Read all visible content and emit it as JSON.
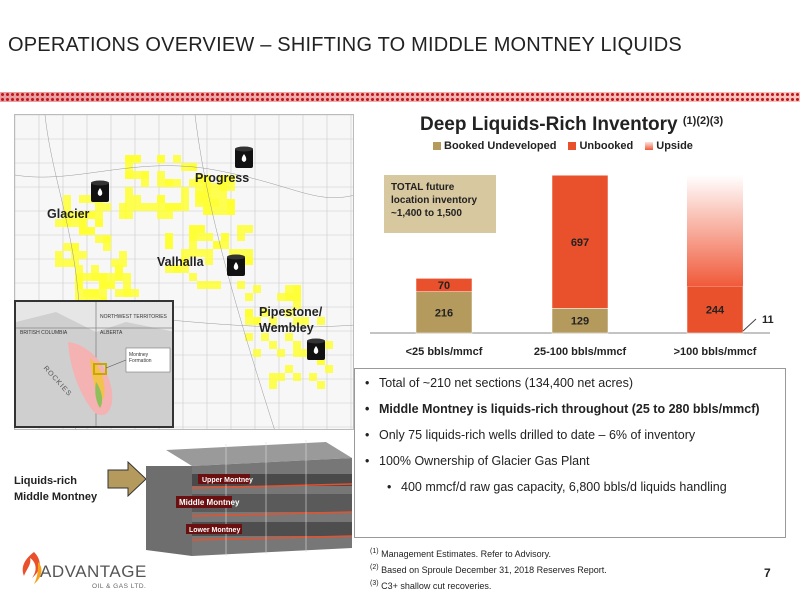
{
  "slide": {
    "title": "OPERATIONS OVERVIEW – SHIFTING TO MIDDLE MONTNEY LIQUIDS",
    "page_number": "7"
  },
  "map": {
    "labels": {
      "glacier": "Glacier",
      "progress": "Progress",
      "valhalla": "Valhalla",
      "pipestone": "Pipestone/",
      "wembley": "Wembley"
    },
    "inset_labels": {
      "nwt": "NORTHWEST TERRITORIES",
      "bc": "BRITISH COLUMBIA",
      "alberta": "ALBERTA",
      "rockies": "ROCKIES",
      "montney": "Montney Formation"
    },
    "brand_colors": {
      "field": "#ffff33",
      "drum": "#111111"
    }
  },
  "chart_data": {
    "type": "bar",
    "title": "Deep Liquids-Rich Inventory",
    "title_footnotes": "(1)(2)(3)",
    "categories": [
      "<25 bbls/mmcf",
      "25-100 bbls/mmcf",
      ">100 bbls/mmcf"
    ],
    "series": [
      {
        "name": "Booked Undeveloped",
        "color": "#b59a5e",
        "values": [
          216,
          129,
          0
        ]
      },
      {
        "name": "Unbooked",
        "color": "#e8512c",
        "values": [
          70,
          697,
          244
        ]
      },
      {
        "name": "Upside",
        "color": "#f05a3a",
        "values": [
          0,
          0,
          0
        ]
      }
    ],
    "data_labels": {
      "booked": [
        "216",
        "129",
        ""
      ],
      "unbooked": [
        "70",
        "697",
        "244"
      ],
      "extra": "11"
    },
    "upside_gradient": true,
    "stacked": true
  },
  "callout": {
    "line1": "TOTAL future",
    "line2": "location inventory",
    "line3": "~1,400 to 1,500"
  },
  "bullets": [
    {
      "text": "Total of ~210 net sections (134,400 net acres)",
      "bold": false
    },
    {
      "text": "Middle Montney is liquids-rich throughout (25 to 280 bbls/mmcf)",
      "bold": true
    },
    {
      "text": "Only 75 liquids-rich wells drilled to date – 6% of inventory",
      "bold": false
    },
    {
      "text": "100% Ownership of Glacier Gas Plant",
      "bold": false
    },
    {
      "text": "400 mmcf/d raw gas capacity, 6,800 bbls/d liquids handling",
      "bold": false
    }
  ],
  "footnotes": [
    {
      "num": "(1)",
      "text": "Management Estimates. Refer to Advisory."
    },
    {
      "num": "(2)",
      "text": "Based on Sproule December 31, 2018 Reserves Report."
    },
    {
      "num": "(3)",
      "text": "C3+ shallow cut recoveries."
    }
  ],
  "cross_section": {
    "label_line1": "Liquids-rich",
    "label_line2": "Middle Montney",
    "upper": "Upper Montney",
    "middle": "Middle Montney",
    "lower": "Lower Montney"
  },
  "logo": {
    "name": "ADVANTAGE",
    "sub": "OIL & GAS LTD."
  }
}
